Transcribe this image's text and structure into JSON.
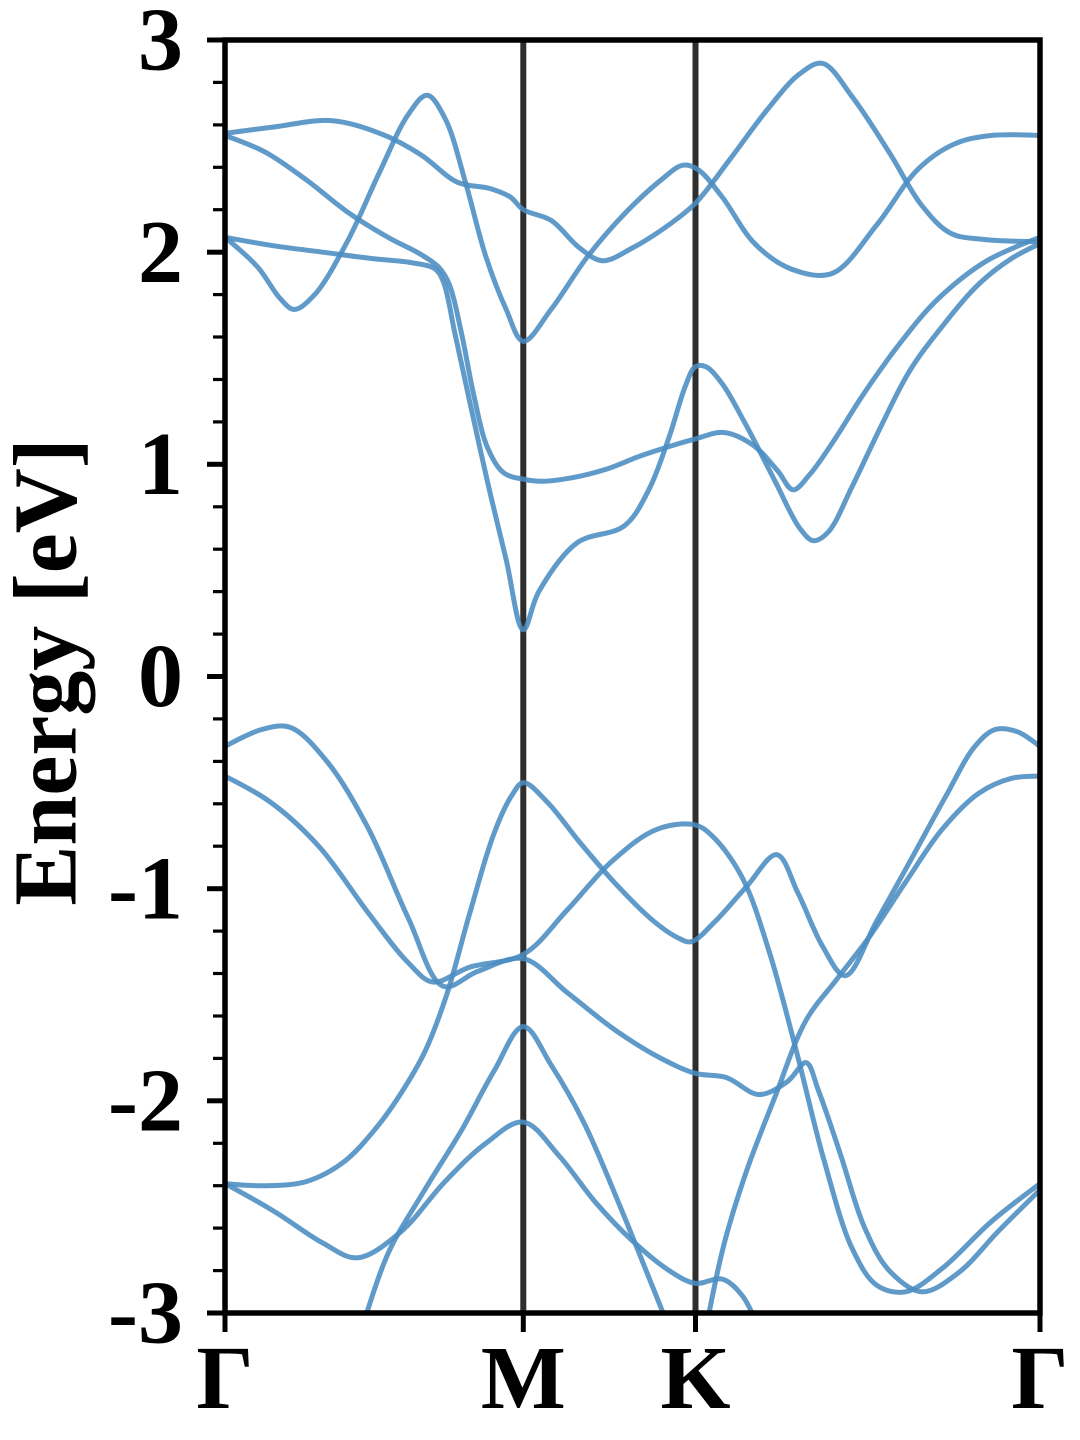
{
  "chart_data": {
    "type": "line",
    "title": "",
    "xlabel": "",
    "ylabel": "Energy [eV]",
    "ylim": [
      -3,
      3
    ],
    "grid": false,
    "legend": false,
    "band_color": "#4a8cc2",
    "frame_color": "#000000",
    "vline_color": "#2e2e2e",
    "y_major_ticks": [
      3,
      2,
      1,
      0,
      -1,
      -2,
      -3
    ],
    "y_tick_labels": [
      "3",
      "2",
      "1",
      "0",
      "-1",
      "-2",
      "-3"
    ],
    "y_minor_tick_step": 0.2,
    "xticks": {
      "labels": [
        "Γ",
        "M",
        "K",
        "Γ"
      ],
      "positions": [
        0,
        0.36603,
        0.57735,
        1.0
      ]
    },
    "high_symmetry_lines": [
      {
        "label": "M",
        "position": 0.36603
      },
      {
        "label": "K",
        "position": 0.57735
      }
    ],
    "bands": [
      {
        "name": "conduction-1",
        "points": [
          [
            0,
            2.07
          ],
          [
            0.06,
            2.03
          ],
          [
            0.12,
            2.0
          ],
          [
            0.18,
            1.97
          ],
          [
            0.23,
            1.95
          ],
          [
            0.258,
            1.92
          ],
          [
            0.268,
            1.86
          ],
          [
            0.282,
            1.62
          ],
          [
            0.3,
            1.3
          ],
          [
            0.322,
            0.92
          ],
          [
            0.345,
            0.55
          ],
          [
            0.366,
            0.22
          ],
          [
            0.385,
            0.4
          ],
          [
            0.432,
            0.63
          ],
          [
            0.49,
            0.71
          ],
          [
            0.52,
            0.88
          ],
          [
            0.545,
            1.13
          ],
          [
            0.565,
            1.37
          ],
          [
            0.577,
            1.46
          ],
          [
            0.59,
            1.46
          ],
          [
            0.61,
            1.38
          ],
          [
            0.64,
            1.18
          ],
          [
            0.675,
            0.92
          ],
          [
            0.705,
            0.7
          ],
          [
            0.722,
            0.64
          ],
          [
            0.74,
            0.68
          ],
          [
            0.77,
            0.9
          ],
          [
            0.805,
            1.18
          ],
          [
            0.84,
            1.44
          ],
          [
            0.88,
            1.65
          ],
          [
            0.925,
            1.85
          ],
          [
            0.965,
            1.97
          ],
          [
            1,
            2.04
          ]
        ]
      },
      {
        "name": "conduction-2",
        "points": [
          [
            0,
            2.55
          ],
          [
            0.05,
            2.47
          ],
          [
            0.1,
            2.34
          ],
          [
            0.15,
            2.19
          ],
          [
            0.2,
            2.07
          ],
          [
            0.24,
            1.99
          ],
          [
            0.262,
            1.93
          ],
          [
            0.275,
            1.85
          ],
          [
            0.29,
            1.62
          ],
          [
            0.305,
            1.33
          ],
          [
            0.322,
            1.08
          ],
          [
            0.342,
            0.96
          ],
          [
            0.366,
            0.93
          ],
          [
            0.39,
            0.92
          ],
          [
            0.43,
            0.94
          ],
          [
            0.47,
            0.98
          ],
          [
            0.51,
            1.04
          ],
          [
            0.55,
            1.09
          ],
          [
            0.577,
            1.12
          ],
          [
            0.612,
            1.15
          ],
          [
            0.648,
            1.09
          ],
          [
            0.678,
            0.97
          ],
          [
            0.697,
            0.88
          ],
          [
            0.717,
            0.95
          ],
          [
            0.745,
            1.1
          ],
          [
            0.785,
            1.34
          ],
          [
            0.83,
            1.58
          ],
          [
            0.875,
            1.78
          ],
          [
            0.935,
            1.96
          ],
          [
            1,
            2.07
          ]
        ]
      },
      {
        "name": "conduction-3",
        "points": [
          [
            0,
            2.07
          ],
          [
            0.04,
            1.93
          ],
          [
            0.068,
            1.78
          ],
          [
            0.085,
            1.73
          ],
          [
            0.11,
            1.8
          ],
          [
            0.15,
            2.05
          ],
          [
            0.19,
            2.38
          ],
          [
            0.225,
            2.65
          ],
          [
            0.248,
            2.74
          ],
          [
            0.27,
            2.63
          ],
          [
            0.295,
            2.33
          ],
          [
            0.32,
            1.98
          ],
          [
            0.345,
            1.73
          ],
          [
            0.366,
            1.58
          ],
          [
            0.4,
            1.73
          ],
          [
            0.445,
            1.98
          ],
          [
            0.49,
            2.18
          ],
          [
            0.535,
            2.34
          ],
          [
            0.562,
            2.41
          ],
          [
            0.58,
            2.39
          ],
          [
            0.61,
            2.26
          ],
          [
            0.65,
            2.04
          ],
          [
            0.695,
            1.92
          ],
          [
            0.745,
            1.9
          ],
          [
            0.8,
            2.13
          ],
          [
            0.85,
            2.39
          ],
          [
            0.895,
            2.51
          ],
          [
            0.94,
            2.55
          ],
          [
            1,
            2.55
          ]
        ]
      },
      {
        "name": "conduction-4",
        "points": [
          [
            0,
            2.56
          ],
          [
            0.06,
            2.59
          ],
          [
            0.13,
            2.62
          ],
          [
            0.19,
            2.56
          ],
          [
            0.24,
            2.46
          ],
          [
            0.285,
            2.33
          ],
          [
            0.325,
            2.3
          ],
          [
            0.35,
            2.26
          ],
          [
            0.366,
            2.2
          ],
          [
            0.4,
            2.15
          ],
          [
            0.435,
            2.02
          ],
          [
            0.463,
            1.96
          ],
          [
            0.5,
            2.02
          ],
          [
            0.545,
            2.13
          ],
          [
            0.577,
            2.23
          ],
          [
            0.62,
            2.44
          ],
          [
            0.665,
            2.67
          ],
          [
            0.705,
            2.84
          ],
          [
            0.733,
            2.89
          ],
          [
            0.77,
            2.73
          ],
          [
            0.815,
            2.47
          ],
          [
            0.855,
            2.22
          ],
          [
            0.89,
            2.09
          ],
          [
            0.93,
            2.06
          ],
          [
            1,
            2.05
          ]
        ]
      },
      {
        "name": "valence-1",
        "points": [
          [
            0,
            -0.33
          ],
          [
            0.045,
            -0.25
          ],
          [
            0.08,
            -0.24
          ],
          [
            0.125,
            -0.4
          ],
          [
            0.175,
            -0.71
          ],
          [
            0.225,
            -1.14
          ],
          [
            0.268,
            -1.46
          ],
          [
            0.31,
            -1.39
          ],
          [
            0.366,
            -1.33
          ],
          [
            0.42,
            -1.49
          ],
          [
            0.48,
            -1.67
          ],
          [
            0.535,
            -1.8
          ],
          [
            0.577,
            -1.87
          ],
          [
            0.615,
            -1.89
          ],
          [
            0.655,
            -1.97
          ],
          [
            0.69,
            -1.91
          ],
          [
            0.713,
            -1.82
          ],
          [
            0.728,
            -1.95
          ],
          [
            0.755,
            -2.25
          ],
          [
            0.785,
            -2.6
          ],
          [
            0.815,
            -2.8
          ],
          [
            0.855,
            -2.9
          ],
          [
            0.9,
            -2.81
          ],
          [
            0.95,
            -2.61
          ],
          [
            1,
            -2.42
          ]
        ]
      },
      {
        "name": "valence-2",
        "points": [
          [
            0,
            -0.47
          ],
          [
            0.055,
            -0.59
          ],
          [
            0.115,
            -0.8
          ],
          [
            0.175,
            -1.11
          ],
          [
            0.225,
            -1.35
          ],
          [
            0.255,
            -1.44
          ],
          [
            0.3,
            -1.37
          ],
          [
            0.366,
            -1.31
          ],
          [
            0.42,
            -1.1
          ],
          [
            0.475,
            -0.87
          ],
          [
            0.53,
            -0.72
          ],
          [
            0.577,
            -0.7
          ],
          [
            0.6,
            -0.76
          ],
          [
            0.635,
            -0.95
          ],
          [
            0.668,
            -1.3
          ],
          [
            0.7,
            -1.75
          ],
          [
            0.735,
            -2.28
          ],
          [
            0.77,
            -2.7
          ],
          [
            0.8,
            -2.87
          ],
          [
            0.835,
            -2.9
          ],
          [
            0.88,
            -2.79
          ],
          [
            0.94,
            -2.57
          ],
          [
            1,
            -2.39
          ]
        ]
      },
      {
        "name": "valence-3",
        "points": [
          [
            0,
            -2.39
          ],
          [
            0.05,
            -2.4
          ],
          [
            0.1,
            -2.38
          ],
          [
            0.145,
            -2.29
          ],
          [
            0.185,
            -2.13
          ],
          [
            0.215,
            -1.97
          ],
          [
            0.245,
            -1.77
          ],
          [
            0.272,
            -1.5
          ],
          [
            0.3,
            -1.12
          ],
          [
            0.33,
            -0.74
          ],
          [
            0.352,
            -0.56
          ],
          [
            0.366,
            -0.5
          ],
          [
            0.395,
            -0.59
          ],
          [
            0.435,
            -0.78
          ],
          [
            0.48,
            -0.98
          ],
          [
            0.525,
            -1.15
          ],
          [
            0.555,
            -1.23
          ],
          [
            0.572,
            -1.25
          ],
          [
            0.6,
            -1.16
          ],
          [
            0.64,
            -0.99
          ],
          [
            0.677,
            -0.84
          ],
          [
            0.703,
            -1.02
          ],
          [
            0.733,
            -1.27
          ],
          [
            0.761,
            -1.41
          ],
          [
            0.8,
            -1.15
          ],
          [
            0.845,
            -0.84
          ],
          [
            0.885,
            -0.56
          ],
          [
            0.92,
            -0.33
          ],
          [
            0.945,
            -0.25
          ],
          [
            0.972,
            -0.26
          ],
          [
            1,
            -0.33
          ]
        ]
      },
      {
        "name": "valence-4",
        "points": [
          [
            0.589,
            -3.1
          ],
          [
            0.612,
            -2.68
          ],
          [
            0.64,
            -2.33
          ],
          [
            0.675,
            -1.98
          ],
          [
            0.713,
            -1.62
          ],
          [
            0.75,
            -1.43
          ],
          [
            0.79,
            -1.23
          ],
          [
            0.835,
            -0.97
          ],
          [
            0.88,
            -0.72
          ],
          [
            0.925,
            -0.55
          ],
          [
            0.965,
            -0.48
          ],
          [
            1,
            -0.47
          ]
        ]
      },
      {
        "name": "valence-5",
        "points": [
          [
            0,
            -2.39
          ],
          [
            0.06,
            -2.52
          ],
          [
            0.12,
            -2.67
          ],
          [
            0.162,
            -2.74
          ],
          [
            0.215,
            -2.62
          ],
          [
            0.27,
            -2.38
          ],
          [
            0.32,
            -2.2
          ],
          [
            0.366,
            -2.1
          ],
          [
            0.41,
            -2.26
          ],
          [
            0.455,
            -2.48
          ],
          [
            0.5,
            -2.66
          ],
          [
            0.545,
            -2.8
          ],
          [
            0.577,
            -2.86
          ],
          [
            0.61,
            -2.84
          ],
          [
            0.635,
            -2.92
          ],
          [
            0.658,
            -3.1
          ]
        ]
      },
      {
        "name": "valence-6",
        "points": [
          [
            0.166,
            -3.1
          ],
          [
            0.2,
            -2.72
          ],
          [
            0.245,
            -2.42
          ],
          [
            0.29,
            -2.14
          ],
          [
            0.33,
            -1.86
          ],
          [
            0.366,
            -1.65
          ],
          [
            0.4,
            -1.83
          ],
          [
            0.44,
            -2.1
          ],
          [
            0.485,
            -2.5
          ],
          [
            0.525,
            -2.88
          ],
          [
            0.548,
            -3.1
          ]
        ]
      }
    ]
  }
}
